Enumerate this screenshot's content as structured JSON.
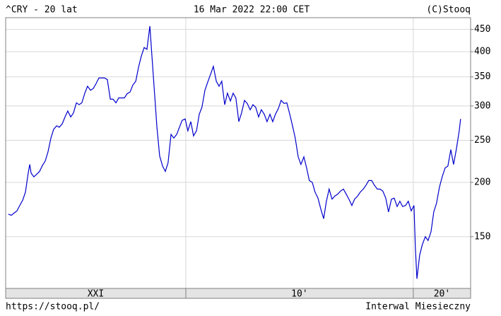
{
  "chart_data": {
    "type": "line",
    "title": "^CRY - 20 lat",
    "subtitle": "16 Mar 2022 22:00 CET",
    "credit": "(C)Stooq",
    "footer_left": "https://stooq.pl/",
    "footer_right": "Interwal Miesieczny",
    "log_scale": true,
    "grid": true,
    "xlim": [
      2002.08,
      2022.52
    ],
    "xticks": [
      2010,
      2020
    ],
    "x_span_labels": [
      "XXI",
      "10'",
      "20'"
    ],
    "ylim": [
      114,
      479
    ],
    "yticks": [
      150,
      200,
      250,
      300,
      350,
      400,
      450
    ],
    "series": [
      {
        "name": "^CRY",
        "color": "#0000cc",
        "x": [
          2002.2,
          2002.33,
          2002.45,
          2002.58,
          2002.7,
          2002.83,
          2002.95,
          2003.07,
          2003.14,
          2003.2,
          2003.32,
          2003.45,
          2003.57,
          2003.7,
          2003.82,
          2003.94,
          2004.07,
          2004.19,
          2004.32,
          2004.44,
          2004.57,
          2004.69,
          2004.81,
          2004.94,
          2005.06,
          2005.19,
          2005.31,
          2005.43,
          2005.56,
          2005.68,
          2005.81,
          2005.93,
          2006.06,
          2006.18,
          2006.3,
          2006.43,
          2006.55,
          2006.68,
          2006.8,
          2006.93,
          2007.05,
          2007.17,
          2007.3,
          2007.42,
          2007.55,
          2007.67,
          2007.8,
          2007.92,
          2008.04,
          2008.17,
          2008.29,
          2008.42,
          2008.48,
          2008.6,
          2008.73,
          2008.85,
          2008.98,
          2009.1,
          2009.22,
          2009.35,
          2009.47,
          2009.6,
          2009.72,
          2009.84,
          2009.97,
          2010.09,
          2010.22,
          2010.34,
          2010.47,
          2010.59,
          2010.71,
          2010.84,
          2010.96,
          2011.09,
          2011.21,
          2011.34,
          2011.46,
          2011.58,
          2011.71,
          2011.83,
          2011.96,
          2012.08,
          2012.2,
          2012.33,
          2012.45,
          2012.58,
          2012.7,
          2012.83,
          2012.95,
          2013.07,
          2013.2,
          2013.32,
          2013.45,
          2013.57,
          2013.7,
          2013.82,
          2013.94,
          2014.07,
          2014.19,
          2014.32,
          2014.44,
          2014.57,
          2014.69,
          2014.81,
          2014.94,
          2015.06,
          2015.19,
          2015.31,
          2015.43,
          2015.56,
          2015.68,
          2015.81,
          2015.93,
          2016.06,
          2016.18,
          2016.3,
          2016.43,
          2016.55,
          2016.68,
          2016.8,
          2016.93,
          2017.05,
          2017.17,
          2017.3,
          2017.42,
          2017.55,
          2017.67,
          2017.8,
          2017.92,
          2018.04,
          2018.17,
          2018.29,
          2018.42,
          2018.54,
          2018.66,
          2018.79,
          2018.91,
          2019.04,
          2019.16,
          2019.29,
          2019.41,
          2019.53,
          2019.66,
          2019.78,
          2019.91,
          2020.03,
          2020.09,
          2020.16,
          2020.28,
          2020.4,
          2020.53,
          2020.65,
          2020.78,
          2020.9,
          2021.02,
          2021.15,
          2021.27,
          2021.4,
          2021.52,
          2021.65,
          2021.77,
          2021.89,
          2022.02,
          2022.08
        ],
        "values": [
          169,
          168,
          170,
          172,
          177,
          182,
          190,
          210,
          220,
          210,
          206,
          209,
          212,
          219,
          224,
          235,
          253,
          265,
          270,
          268,
          273,
          283,
          292,
          283,
          289,
          305,
          302,
          305,
          321,
          333,
          326,
          329,
          338,
          348,
          348,
          348,
          345,
          311,
          311,
          305,
          313,
          313,
          313,
          320,
          323,
          335,
          342,
          368,
          390,
          409,
          405,
          458,
          412,
          335,
          268,
          230,
          218,
          212,
          222,
          258,
          253,
          258,
          268,
          278,
          280,
          263,
          276,
          256,
          263,
          287,
          298,
          326,
          340,
          355,
          370,
          342,
          333,
          342,
          302,
          321,
          308,
          321,
          313,
          276,
          289,
          309,
          304,
          294,
          302,
          298,
          283,
          294,
          287,
          276,
          287,
          276,
          287,
          296,
          309,
          304,
          305,
          287,
          270,
          253,
          229,
          220,
          229,
          216,
          202,
          200,
          190,
          184,
          174,
          165,
          181,
          193,
          183,
          186,
          188,
          191,
          193,
          188,
          183,
          177,
          183,
          186,
          190,
          193,
          197,
          202,
          202,
          197,
          193,
          193,
          191,
          184,
          171,
          183,
          184,
          176,
          181,
          176,
          177,
          181,
          172,
          177,
          142,
          120,
          136,
          144,
          150,
          147,
          154,
          171,
          179,
          195,
          206,
          216,
          218,
          238,
          220,
          238,
          263,
          280
        ]
      }
    ]
  }
}
